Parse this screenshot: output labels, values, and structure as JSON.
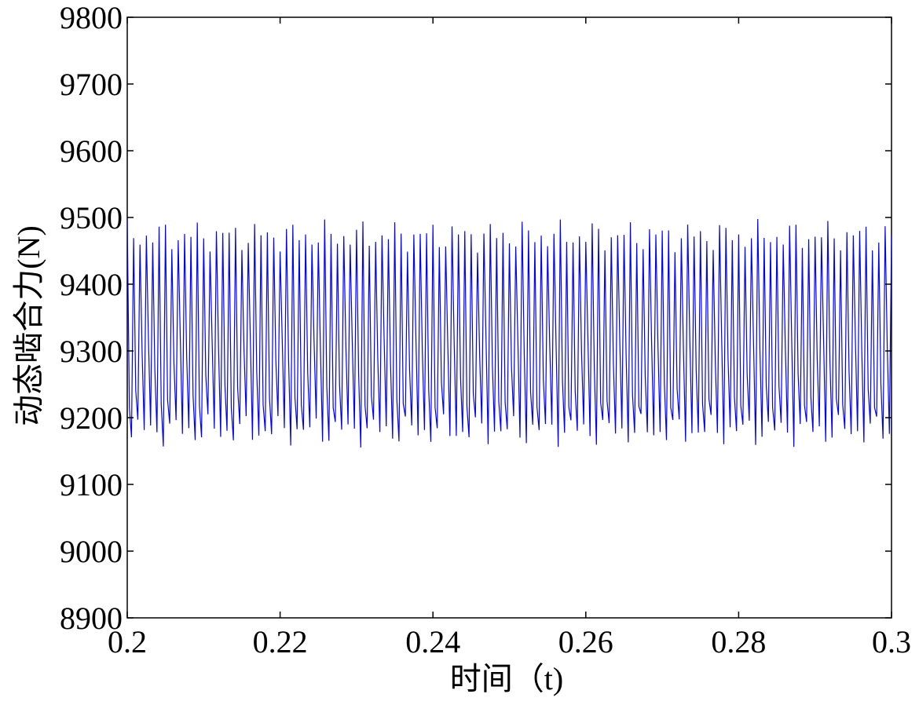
{
  "chart_data": {
    "type": "line",
    "title": "",
    "xlabel": "时间（t)",
    "ylabel": "动态啮合力(N)",
    "xlim": [
      0.2,
      0.3
    ],
    "ylim": [
      8900,
      9800
    ],
    "xticks": [
      0.2,
      0.22,
      0.24,
      0.26,
      0.28,
      0.3
    ],
    "xtick_labels": [
      "0.2",
      "0.22",
      "0.24",
      "0.26",
      "0.28",
      "0.3"
    ],
    "yticks": [
      8900,
      9000,
      9100,
      9200,
      9300,
      9400,
      9500,
      9600,
      9700,
      9800
    ],
    "ytick_labels": [
      "8900",
      "9000",
      "9100",
      "9200",
      "9300",
      "9400",
      "9500",
      "9600",
      "9700",
      "9800"
    ],
    "grid": false,
    "series": [
      {
        "color": "#0000ff",
        "mean": 9330,
        "min": 9155,
        "max": 9498,
        "cycles_per_0_1s": 120,
        "samples_per_cycle": 3,
        "x_start": 0.2,
        "x_end": 0.3
      }
    ]
  }
}
